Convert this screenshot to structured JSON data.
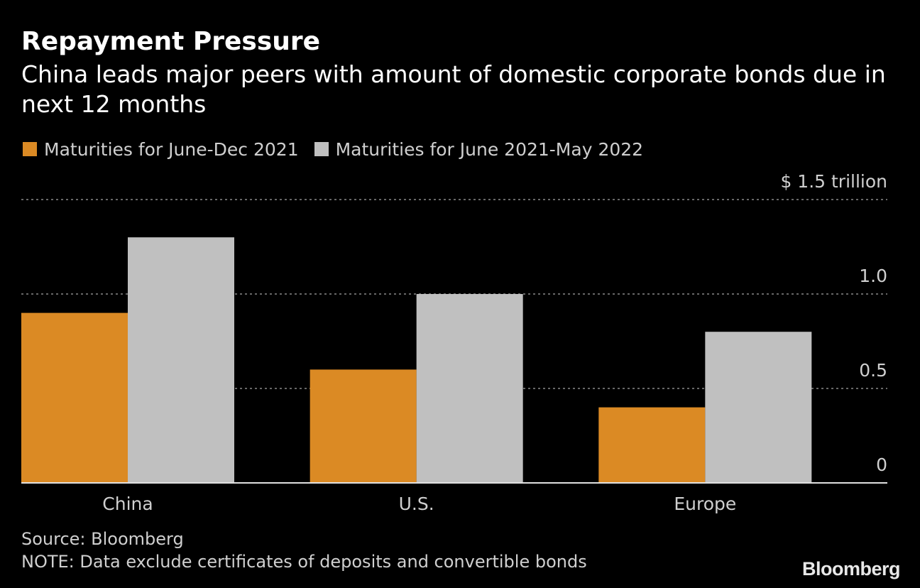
{
  "header": {
    "title": "Repayment Pressure",
    "subtitle": "China leads major peers with amount of domestic corporate bonds due in next 12 months"
  },
  "chart_data": {
    "type": "bar",
    "categories": [
      "China",
      "U.S.",
      "Europe"
    ],
    "series": [
      {
        "name": "Maturities for June-Dec 2021",
        "color": "#db8a24",
        "values": [
          0.9,
          0.6,
          0.4
        ]
      },
      {
        "name": "Maturities for June 2021-May 2022",
        "color": "#c0c0c0",
        "values": [
          1.3,
          1.0,
          0.8
        ]
      }
    ],
    "yticks": [
      "0",
      "0.5",
      "1.0",
      "$ 1.5 trillion"
    ],
    "ytick_values": [
      0,
      0.5,
      1.0,
      1.5
    ],
    "ylim": [
      0,
      1.5
    ],
    "grid": true,
    "legend_position": "top-left"
  },
  "footer": {
    "source": "Source: Bloomberg",
    "note": "NOTE: Data exclude certificates of deposits and convertible bonds",
    "logo": "Bloomberg"
  }
}
